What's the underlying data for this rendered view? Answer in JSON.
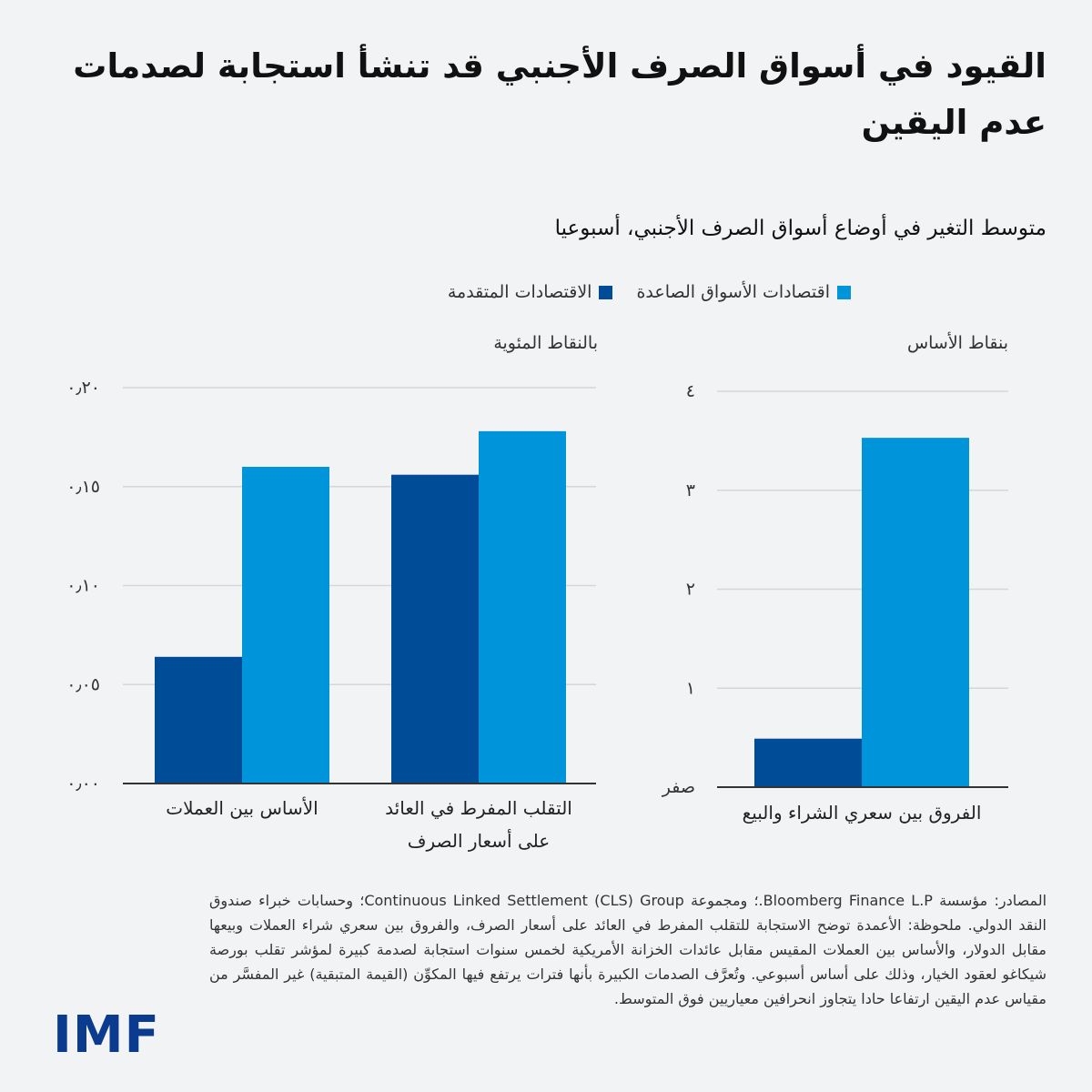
{
  "header": {
    "title": "القيود في أسواق الصرف الأجنبي قد تنشأ استجابة لصدمات عدم اليقين",
    "subtitle": "متوسط التغير في أوضاع أسواق الصرف الأجنبي، أسبوعيا"
  },
  "legend": {
    "emerging": "اقتصادات الأسواق الصاعدة",
    "advanced": "الاقتصادات المتقدمة"
  },
  "colors": {
    "emerging": "#0094db",
    "advanced": "#004c97",
    "grid": "#d3d6da",
    "axis": "#333333"
  },
  "chart_data": [
    {
      "type": "bar",
      "unit_label": "بالنقاط المئوية",
      "categories": [
        {
          "lines": [
            "الأساس بين العملات"
          ]
        },
        {
          "lines": [
            "التقلب المفرط في العائد",
            "على أسعار الصرف"
          ]
        }
      ],
      "series": [
        {
          "name": "الاقتصادات المتقدمة",
          "values": [
            0.064,
            0.156
          ]
        },
        {
          "name": "اقتصادات الأسواق الصاعدة",
          "values": [
            0.16,
            0.178
          ]
        }
      ],
      "ylim": [
        0,
        0.2
      ],
      "yticks": [
        {
          "value": 0,
          "label": "٠٫٠٠"
        },
        {
          "value": 0.05,
          "label": "٠٫٠٥"
        },
        {
          "value": 0.1,
          "label": "٠٫١٠"
        },
        {
          "value": 0.15,
          "label": "٠٫١٥"
        },
        {
          "value": 0.2,
          "label": "٠٫٢٠"
        }
      ],
      "grid": true
    },
    {
      "type": "bar",
      "unit_label": "بنقاط الأساس",
      "categories": [
        {
          "lines": [
            "الفروق بين سعري الشراء والبيع"
          ]
        }
      ],
      "series": [
        {
          "name": "الاقتصادات المتقدمة",
          "values": [
            0.49
          ]
        },
        {
          "name": "اقتصادات الأسواق الصاعدة",
          "values": [
            3.53
          ]
        }
      ],
      "ylim": [
        0,
        4
      ],
      "yticks": [
        {
          "value": 0,
          "label": "صفر"
        },
        {
          "value": 1,
          "label": "١"
        },
        {
          "value": 2,
          "label": "٢"
        },
        {
          "value": 3,
          "label": "٣"
        },
        {
          "value": 4,
          "label": "٤"
        }
      ],
      "grid": true
    }
  ],
  "footer": {
    "notes": "المصادر: مؤسسة Bloomberg Finance L.P.؛ ومجموعة Continuous Linked Settlement (CLS) Group؛ وحسابات خبراء صندوق النقد الدولي. ملحوظة: الأعمدة توضح الاستجابة للتقلب المفرط في العائد على أسعار الصرف، والفروق بين سعري شراء العملات وبيعها مقابل الدولار، والأساس بين العملات المقيس مقابل عائدات الخزانة الأمريكية لخمس سنوات استجابة لصدمة كبيرة لمؤشر تقلب بورصة شيكاغو لعقود الخيار، وذلك على أساس أسبوعي. وتُعرَّف الصدمات الكبيرة بأنها فترات يرتفع فيها المكوِّن (القيمة المتبقية) غير المفسَّر من مقياس عدم اليقين ارتفاعا حادا يتجاوز انحرافين معياريين فوق المتوسط.",
    "logo": "IMF"
  }
}
